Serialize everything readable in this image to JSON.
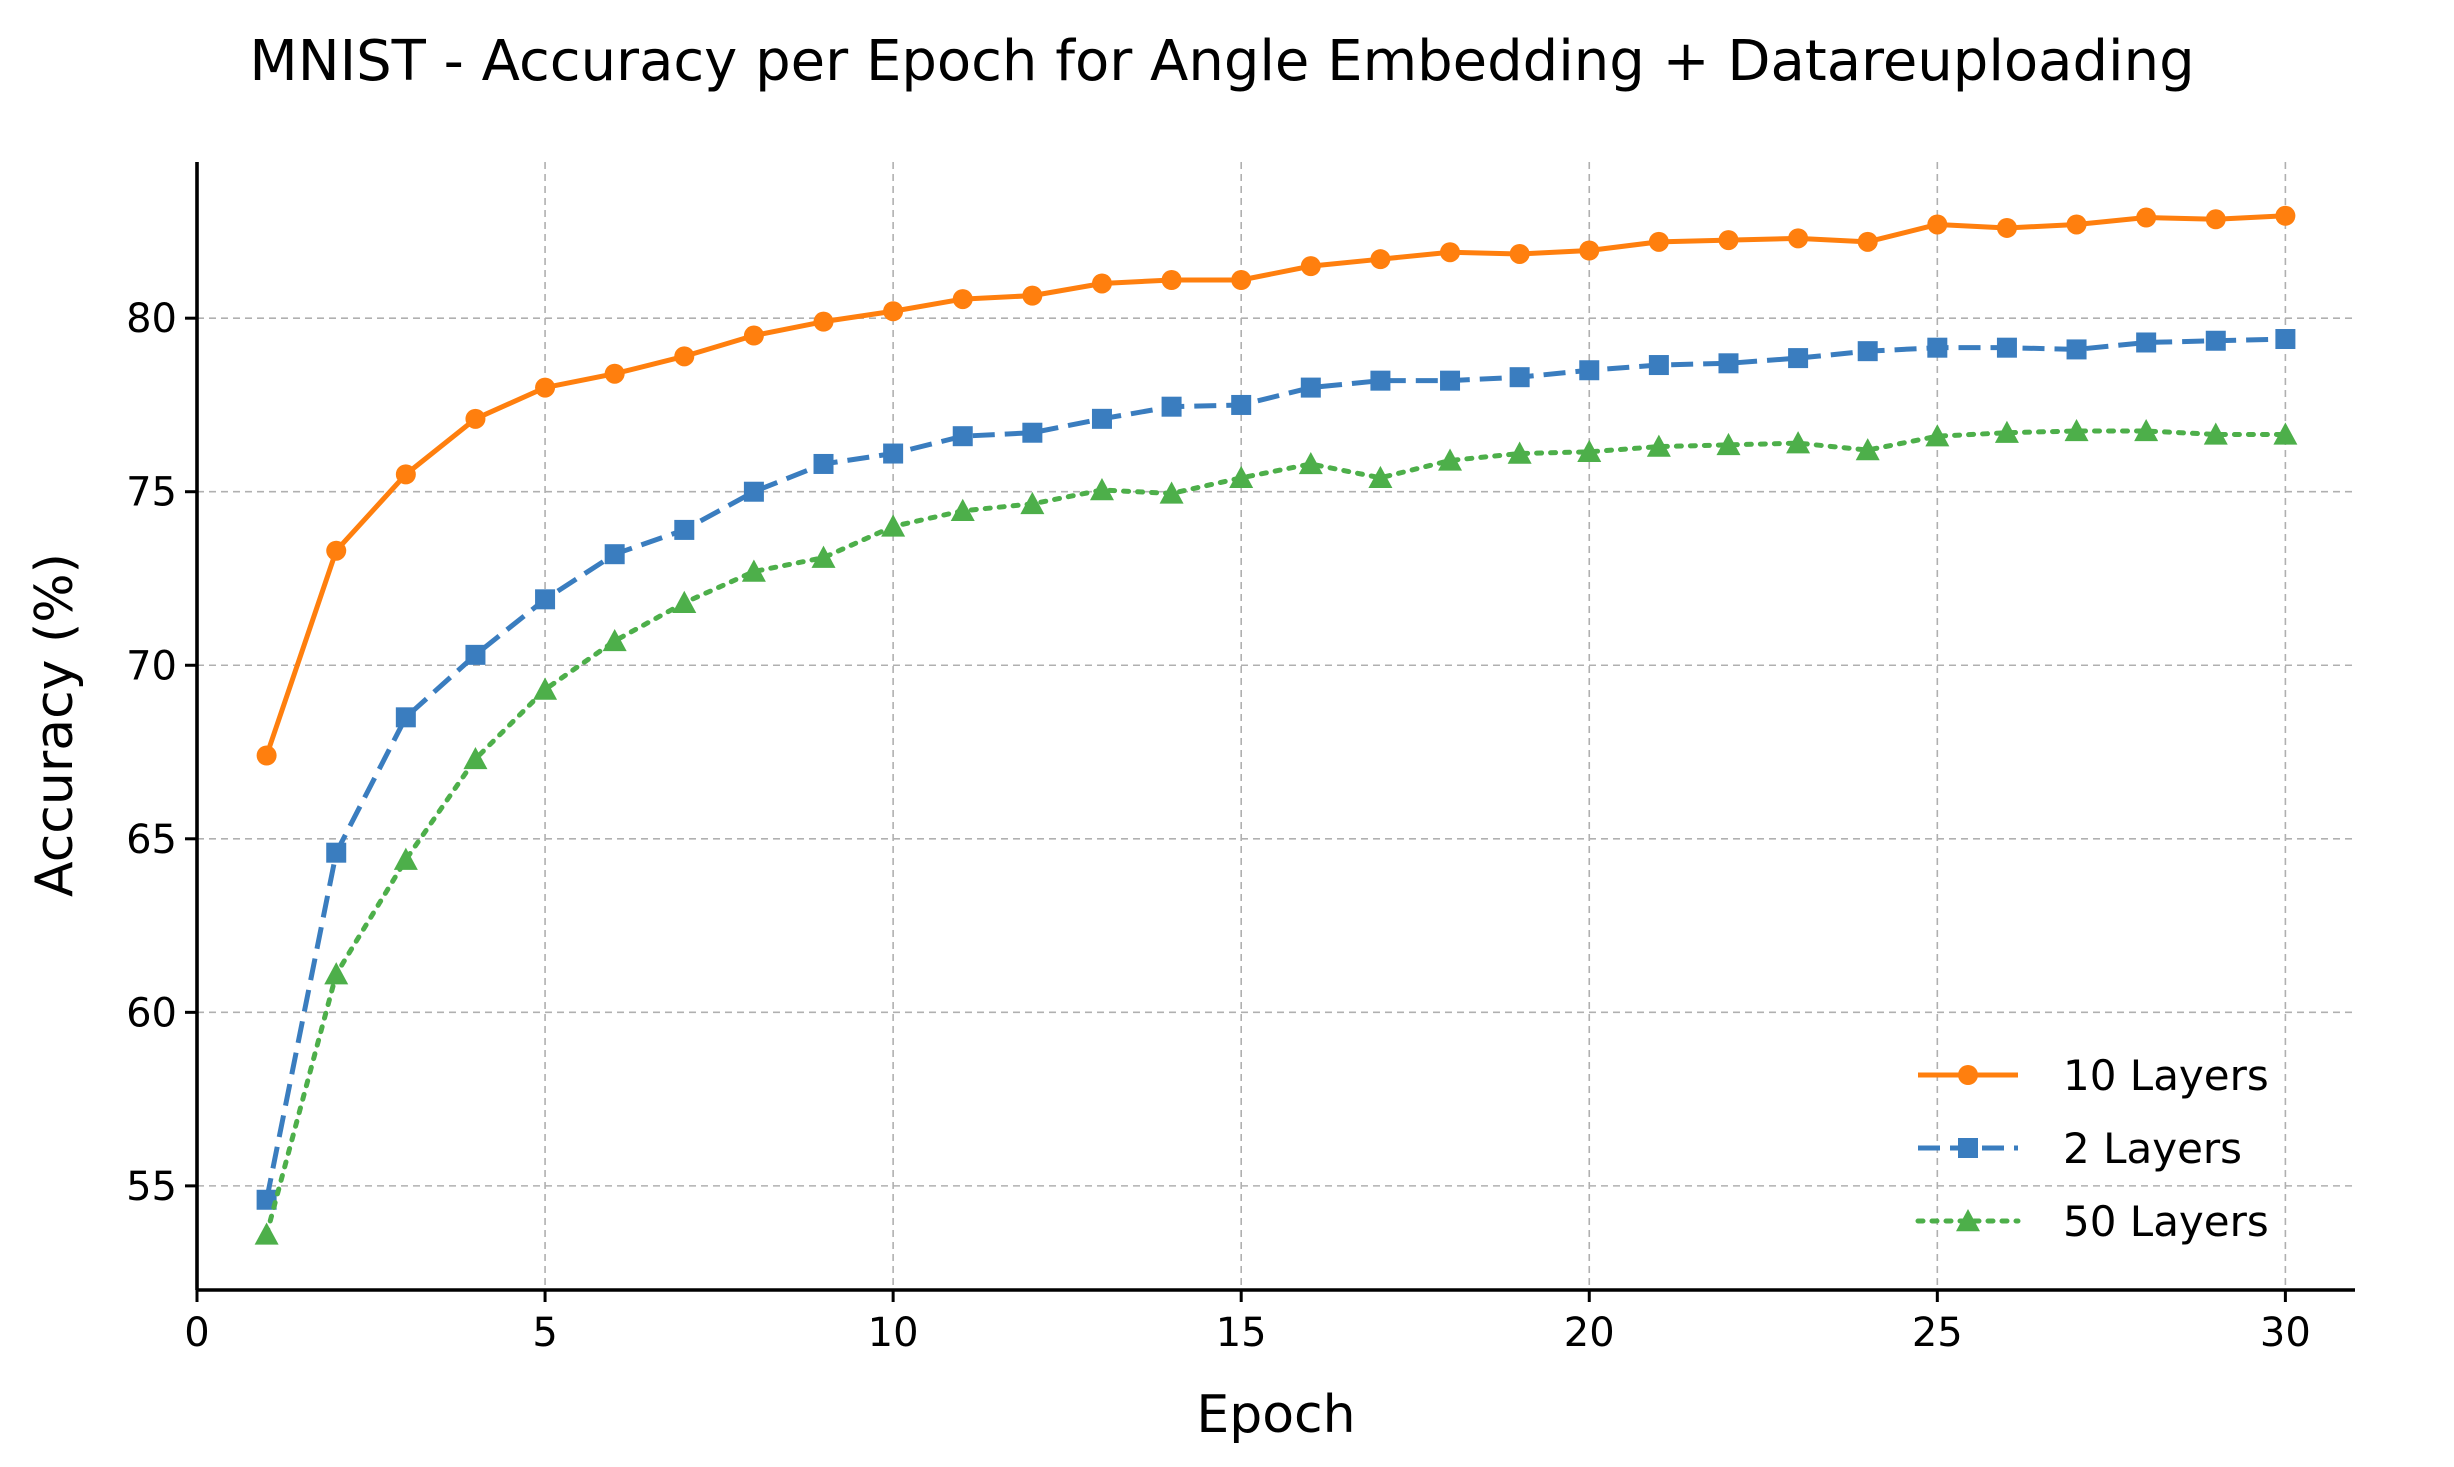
{
  "chart_data": {
    "type": "line",
    "title": "MNIST - Accuracy per Epoch for Angle Embedding + Datareuploading",
    "xlabel": "Epoch",
    "ylabel": "Accuracy (%)",
    "xlim": [
      0,
      31
    ],
    "ylim": [
      52,
      84.5
    ],
    "xticks": [
      0,
      5,
      10,
      15,
      20,
      25,
      30
    ],
    "yticks": [
      55,
      60,
      65,
      70,
      75,
      80
    ],
    "grid": true,
    "legend_position": "lower-right",
    "x": [
      1,
      2,
      3,
      4,
      5,
      6,
      7,
      8,
      9,
      10,
      11,
      12,
      13,
      14,
      15,
      16,
      17,
      18,
      19,
      20,
      21,
      22,
      23,
      24,
      25,
      26,
      27,
      28,
      29,
      30
    ],
    "series": [
      {
        "name": "10 Layers",
        "color": "#ff7f0e",
        "line_style": "solid",
        "marker": "circle",
        "values": [
          67.4,
          73.3,
          75.5,
          77.1,
          78.0,
          78.4,
          78.9,
          79.5,
          79.9,
          80.2,
          80.55,
          80.65,
          81.0,
          81.1,
          81.1,
          81.5,
          81.7,
          81.9,
          81.85,
          81.95,
          82.2,
          82.25,
          82.3,
          82.2,
          82.7,
          82.6,
          82.7,
          82.9,
          82.85,
          82.95
        ]
      },
      {
        "name": "2 Layers",
        "color": "#3a7dbf",
        "line_style": "dashed",
        "marker": "square",
        "values": [
          54.6,
          64.6,
          68.5,
          70.3,
          71.9,
          73.2,
          73.9,
          75.0,
          75.8,
          76.1,
          76.6,
          76.7,
          77.1,
          77.45,
          77.5,
          78.0,
          78.2,
          78.2,
          78.3,
          78.5,
          78.65,
          78.7,
          78.85,
          79.05,
          79.15,
          79.15,
          79.1,
          79.3,
          79.35,
          79.4
        ]
      },
      {
        "name": "50 Layers",
        "color": "#4daf4a",
        "line_style": "dotted",
        "marker": "triangle",
        "values": [
          53.6,
          61.1,
          64.4,
          67.3,
          69.3,
          70.7,
          71.8,
          72.7,
          73.1,
          74.0,
          74.45,
          74.65,
          75.05,
          74.95,
          75.4,
          75.8,
          75.4,
          75.9,
          76.1,
          76.15,
          76.3,
          76.35,
          76.4,
          76.2,
          76.6,
          76.7,
          76.75,
          76.75,
          76.65,
          76.65
        ]
      }
    ]
  }
}
